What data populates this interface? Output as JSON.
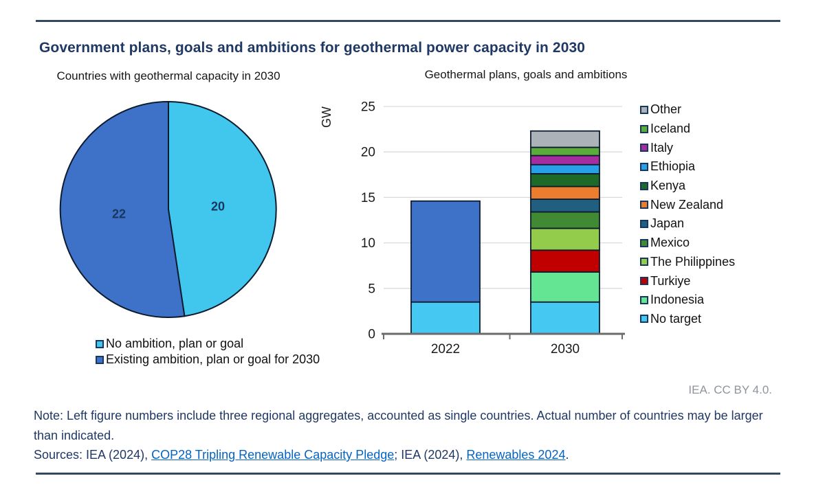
{
  "title": "Government plans, goals and ambitions for geothermal power capacity in 2030",
  "credit": "IEA. CC BY 4.0.",
  "note": "Note: Left figure numbers include three regional aggregates, accounted as single countries. Actual number of countries may be larger than indicated.",
  "sources": {
    "prefix": "Sources: IEA (2024), ",
    "link1": "COP28 Tripling Renewable Capacity Pledge",
    "separator": "; IEA (2024), ",
    "link2": "Renewables 2024",
    "suffix": "."
  },
  "colors": {
    "title_navy": "#1F3864",
    "rule": "#35495c",
    "axis_gray": "#6b6b6b",
    "gridline": "#D9D9D9",
    "segment_outline": "#0D1B2E",
    "link_blue": "#0563C1",
    "credit_gray": "#8E959C",
    "pie_light_blue": "#41C7EE",
    "pie_dark_blue": "#3E72C9"
  },
  "chart_data": [
    {
      "type": "pie",
      "title": "Countries with geothermal capacity in 2030",
      "units": "number of countries",
      "start_angle_deg": 0,
      "direction": "clockwise",
      "legend_position": "bottom",
      "slices": [
        {
          "label": "No ambition, plan or goal",
          "value": 20,
          "color": "#41C7EE"
        },
        {
          "label": "Existing ambition, plan or goal for 2030",
          "value": 22,
          "color": "#3E72C9"
        }
      ]
    },
    {
      "type": "bar",
      "stacked": true,
      "title": "Geothermal plans, goals and ambitions",
      "ylabel": "GW",
      "ylim": [
        0,
        25
      ],
      "yticks": [
        0,
        5,
        10,
        15,
        20,
        25
      ],
      "grid": "horizontal",
      "legend_position": "right",
      "categories": [
        "2022",
        "2030"
      ],
      "legend": [
        "Other",
        "Iceland",
        "Italy",
        "Ethiopia",
        "Kenya",
        "New Zealand",
        "Japan",
        "Mexico",
        "The Philippines",
        "Turkiye",
        "Indonesia",
        "No target"
      ],
      "stacks": {
        "2022": [
          {
            "name": "No target",
            "value": 3.5,
            "color": "#45C9F2"
          },
          {
            "name": "Existing ambition, plan or goal for 2030",
            "value": 11.1,
            "color": "#3E72C9"
          }
        ],
        "2030": [
          {
            "name": "No target",
            "value": 3.5,
            "color": "#45C9F2"
          },
          {
            "name": "Indonesia",
            "value": 3.3,
            "color": "#64E594"
          },
          {
            "name": "Turkiye",
            "value": 2.4,
            "color": "#C00000"
          },
          {
            "name": "The Philippines",
            "value": 2.4,
            "color": "#93CB4A"
          },
          {
            "name": "Mexico",
            "value": 1.8,
            "color": "#3F8A33"
          },
          {
            "name": "Japan",
            "value": 1.4,
            "color": "#215F80"
          },
          {
            "name": "New Zealand",
            "value": 1.4,
            "color": "#EC7D2E"
          },
          {
            "name": "Kenya",
            "value": 1.4,
            "color": "#1D6A28"
          },
          {
            "name": "Ethiopia",
            "value": 1.0,
            "color": "#27A0E8"
          },
          {
            "name": "Italy",
            "value": 1.0,
            "color": "#A62DA0"
          },
          {
            "name": "Iceland",
            "value": 0.9,
            "color": "#5BAD3B"
          },
          {
            "name": "Other",
            "value": 1.8,
            "color": "#ABB2B8"
          }
        ]
      },
      "totals": {
        "2022": 14.6,
        "2030": 22.3
      }
    }
  ]
}
